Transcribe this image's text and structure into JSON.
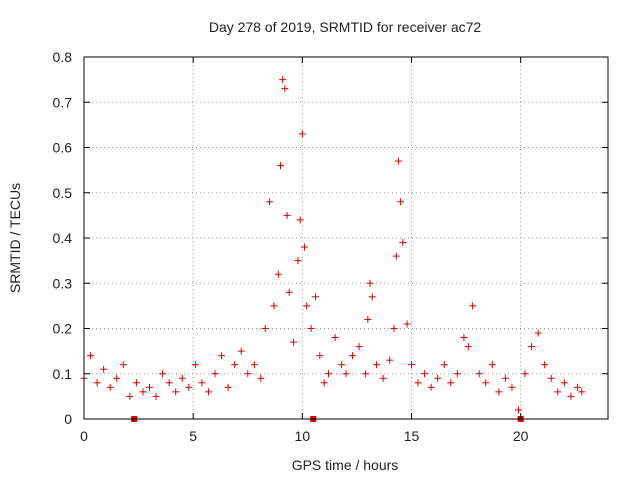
{
  "chart_data": {
    "type": "scatter",
    "title": "Day 278 of 2019, SRMTID for receiver ac72",
    "xlabel": "GPS time / hours",
    "ylabel": "SRMTID / TECUs",
    "xlim": [
      0,
      24
    ],
    "ylim": [
      0,
      0.8
    ],
    "xticks": [
      "0",
      "5",
      "10",
      "15",
      "20"
    ],
    "yticks": [
      "0",
      "0.1",
      "0.2",
      "0.3",
      "0.4",
      "0.5",
      "0.6",
      "0.7",
      "0.8"
    ],
    "grid": true,
    "marker": "+",
    "color": "#e00000",
    "series": [
      {
        "name": "SRMTID",
        "x": [
          0,
          0.3,
          0.6,
          0.9,
          1.2,
          1.5,
          1.8,
          2.1,
          2.4,
          2.7,
          3.0,
          3.3,
          3.6,
          3.9,
          4.2,
          4.5,
          4.8,
          5.1,
          5.4,
          5.7,
          6.0,
          6.3,
          6.6,
          6.9,
          7.2,
          7.5,
          7.8,
          8.1,
          8.3,
          8.5,
          8.7,
          8.9,
          9.0,
          9.1,
          9.2,
          9.3,
          9.4,
          9.6,
          9.8,
          9.9,
          10.0,
          10.1,
          10.2,
          10.4,
          10.6,
          10.8,
          11.0,
          11.2,
          11.5,
          11.8,
          12.0,
          12.3,
          12.6,
          12.9,
          13.0,
          13.1,
          13.2,
          13.4,
          13.7,
          14.0,
          14.2,
          14.3,
          14.4,
          14.5,
          14.6,
          14.8,
          15.0,
          15.3,
          15.6,
          15.9,
          16.2,
          16.5,
          16.8,
          17.1,
          17.4,
          17.6,
          17.8,
          18.1,
          18.4,
          18.7,
          19.0,
          19.3,
          19.6,
          19.9,
          20.2,
          20.5,
          20.8,
          21.1,
          21.4,
          21.7,
          22.0,
          22.3,
          22.6,
          22.8
        ],
        "y": [
          0.09,
          0.14,
          0.08,
          0.11,
          0.07,
          0.09,
          0.12,
          0.05,
          0.08,
          0.06,
          0.07,
          0.05,
          0.1,
          0.08,
          0.06,
          0.09,
          0.07,
          0.12,
          0.08,
          0.06,
          0.1,
          0.14,
          0.07,
          0.12,
          0.15,
          0.1,
          0.12,
          0.09,
          0.2,
          0.48,
          0.25,
          0.32,
          0.56,
          0.75,
          0.73,
          0.45,
          0.28,
          0.17,
          0.35,
          0.44,
          0.63,
          0.38,
          0.25,
          0.2,
          0.27,
          0.14,
          0.08,
          0.1,
          0.18,
          0.12,
          0.1,
          0.14,
          0.16,
          0.1,
          0.22,
          0.3,
          0.27,
          0.12,
          0.09,
          0.13,
          0.2,
          0.36,
          0.57,
          0.48,
          0.39,
          0.21,
          0.12,
          0.08,
          0.1,
          0.07,
          0.09,
          0.12,
          0.08,
          0.1,
          0.18,
          0.16,
          0.25,
          0.1,
          0.08,
          0.12,
          0.06,
          0.09,
          0.07,
          0.02,
          0.1,
          0.16,
          0.19,
          0.12,
          0.09,
          0.06,
          0.08,
          0.05,
          0.07,
          0.06
        ]
      }
    ],
    "axis_markers_x": [
      2.3,
      10.5,
      20.0
    ]
  }
}
